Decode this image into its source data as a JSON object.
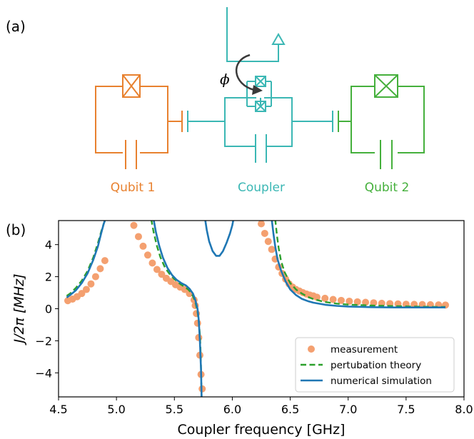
{
  "panel_a": {
    "label": "(a)",
    "qubit1_label": "Qubit 1",
    "coupler_label": "Coupler",
    "qubit2_label": "Qubit 2",
    "flux_symbol": "ϕ",
    "colors": {
      "qubit1": "#e8812f",
      "coupler": "#3bb7b4",
      "qubit2": "#45b03c",
      "arrow": "#3a3a3a"
    }
  },
  "panel_b": {
    "label": "(b)"
  },
  "chart_data": {
    "type": "scatter",
    "xlabel": "Coupler frequency [GHz]",
    "ylabel": "J/2π [MHz]",
    "xlim": [
      4.5,
      8.0
    ],
    "ylim": [
      -5.5,
      5.5
    ],
    "xticks": [
      4.5,
      5.0,
      5.5,
      6.0,
      6.5,
      7.0,
      7.5,
      8.0
    ],
    "xtick_labels": [
      "4.5",
      "5.0",
      "5.5",
      "6.0",
      "6.5",
      "7.0",
      "7.5",
      "8.0"
    ],
    "yticks": [
      -4,
      -2,
      0,
      2,
      4
    ],
    "ytick_labels": [
      "−4",
      "−2",
      "0",
      "2",
      "4"
    ],
    "grid": false,
    "legend_position": "bottom-right",
    "series": [
      {
        "name": "measurement",
        "style": "markers",
        "color": "#f4a070",
        "x": [
          4.58,
          4.62,
          4.66,
          4.7,
          4.74,
          4.78,
          4.82,
          4.86,
          4.9,
          5.15,
          5.19,
          5.23,
          5.27,
          5.31,
          5.35,
          5.39,
          5.43,
          5.47,
          5.51,
          5.55,
          5.59,
          5.63,
          5.67,
          5.68,
          5.69,
          5.7,
          5.71,
          5.72,
          5.73,
          5.74,
          6.25,
          6.28,
          6.31,
          6.34,
          6.37,
          6.4,
          6.43,
          6.46,
          6.49,
          6.52,
          6.55,
          6.58,
          6.61,
          6.64,
          6.67,
          6.7,
          6.73,
          6.8,
          6.87,
          6.94,
          7.01,
          7.08,
          7.15,
          7.22,
          7.29,
          7.36,
          7.43,
          7.5,
          7.57,
          7.64,
          7.71,
          7.78,
          7.84
        ],
        "y": [
          0.5,
          0.6,
          0.75,
          0.95,
          1.2,
          1.55,
          2.0,
          2.5,
          3.0,
          5.2,
          4.5,
          3.9,
          3.35,
          2.85,
          2.45,
          2.15,
          1.9,
          1.7,
          1.5,
          1.35,
          1.2,
          0.95,
          0.55,
          0.2,
          -0.3,
          -0.9,
          -1.8,
          -2.9,
          -4.1,
          -5.0,
          5.3,
          4.7,
          4.2,
          3.7,
          3.1,
          2.6,
          2.2,
          1.85,
          1.55,
          1.35,
          1.2,
          1.1,
          1.0,
          0.92,
          0.85,
          0.8,
          0.72,
          0.65,
          0.58,
          0.52,
          0.47,
          0.43,
          0.4,
          0.37,
          0.34,
          0.32,
          0.3,
          0.28,
          0.27,
          0.26,
          0.25,
          0.24,
          0.23
        ]
      },
      {
        "name": "pertubation theory",
        "style": "dashed",
        "color": "#2ca02c",
        "x": [
          4.57,
          4.6,
          4.65,
          4.7,
          4.75,
          4.8,
          4.84,
          4.87,
          4.89,
          4.905,
          null,
          5.3,
          5.32,
          5.35,
          5.38,
          5.42,
          5.46,
          5.5,
          5.54,
          5.58,
          5.62,
          5.65,
          5.68,
          5.7,
          5.71,
          5.72,
          5.725,
          5.73,
          5.735,
          null,
          6.37,
          6.385,
          6.4,
          6.42,
          6.45,
          6.5,
          6.55,
          6.6,
          6.65,
          6.7,
          6.8,
          6.9,
          7.0,
          7.2,
          7.4,
          7.6,
          7.84
        ],
        "y": [
          0.8,
          0.95,
          1.3,
          1.75,
          2.35,
          3.2,
          4.1,
          4.85,
          5.3,
          5.6,
          null,
          5.6,
          4.8,
          3.9,
          3.2,
          2.55,
          2.15,
          1.85,
          1.6,
          1.4,
          1.2,
          0.95,
          0.45,
          -0.2,
          -0.75,
          -1.6,
          -2.4,
          -3.7,
          -5.5,
          null,
          5.6,
          4.6,
          3.8,
          3.0,
          2.3,
          1.6,
          1.2,
          0.95,
          0.75,
          0.6,
          0.42,
          0.32,
          0.26,
          0.2,
          0.16,
          0.13,
          0.11
        ]
      },
      {
        "name": "numerical simulation",
        "style": "solid",
        "color": "#1f77b4",
        "x": [
          4.57,
          4.6,
          4.65,
          4.7,
          4.75,
          4.8,
          4.84,
          4.87,
          4.89,
          4.905,
          null,
          5.32,
          5.34,
          5.37,
          5.4,
          5.44,
          5.48,
          5.52,
          5.56,
          5.6,
          5.63,
          5.66,
          5.68,
          5.7,
          5.71,
          5.72,
          5.73,
          5.735,
          null,
          5.765,
          5.78,
          5.8,
          5.83,
          5.86,
          5.89,
          5.92,
          5.95,
          5.98,
          6.0,
          6.01,
          null,
          6.34,
          6.355,
          6.37,
          6.39,
          6.42,
          6.46,
          6.5,
          6.55,
          6.6,
          6.65,
          6.7,
          6.8,
          6.9,
          7.0,
          7.2,
          7.4,
          7.6,
          7.84
        ],
        "y": [
          0.7,
          0.85,
          1.15,
          1.6,
          2.2,
          3.05,
          3.9,
          4.75,
          5.3,
          5.6,
          null,
          5.6,
          4.8,
          3.9,
          3.2,
          2.55,
          2.1,
          1.8,
          1.6,
          1.45,
          1.25,
          0.95,
          0.55,
          0.0,
          -0.7,
          -2.0,
          -3.8,
          -5.5,
          null,
          5.6,
          4.9,
          4.2,
          3.6,
          3.3,
          3.3,
          3.6,
          4.1,
          4.7,
          5.2,
          5.6,
          null,
          5.6,
          4.7,
          3.9,
          3.1,
          2.4,
          1.7,
          1.2,
          0.85,
          0.62,
          0.48,
          0.38,
          0.25,
          0.18,
          0.14,
          0.1,
          0.08,
          0.08,
          0.08
        ]
      }
    ]
  }
}
